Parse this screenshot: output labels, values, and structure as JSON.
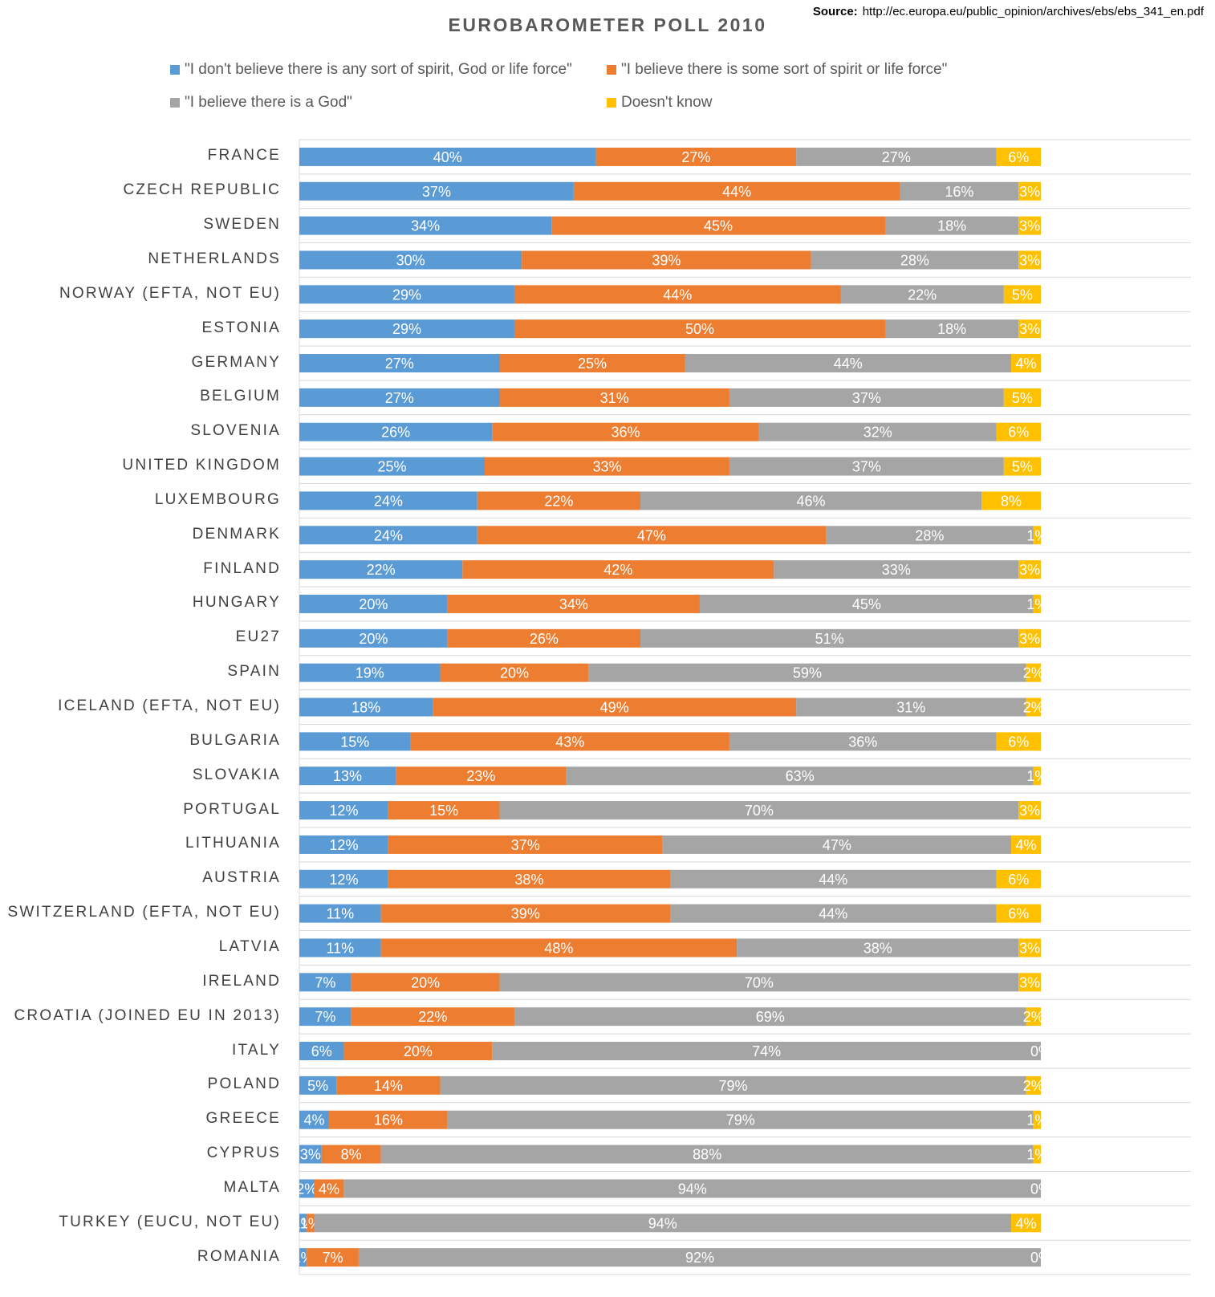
{
  "source": {
    "label": "Source:",
    "url": "http://ec.europa.eu/public_opinion/archives/ebs/ebs_341_en.pdf"
  },
  "chart_data": {
    "type": "bar",
    "orientation": "horizontal",
    "stacked": true,
    "title": "EUROBAROMETER POLL 2010",
    "xlabel": "",
    "ylabel": "",
    "xlim": [
      0,
      100
    ],
    "grid": true,
    "legend_position": "top",
    "categories": [
      "FRANCE",
      "CZECH REPUBLIC",
      "SWEDEN",
      "NETHERLANDS",
      "NORWAY (EFTA, NOT EU)",
      "ESTONIA",
      "GERMANY",
      "BELGIUM",
      "SLOVENIA",
      "UNITED KINGDOM",
      "LUXEMBOURG",
      "DENMARK",
      "FINLAND",
      "HUNGARY",
      "EU27",
      "SPAIN",
      "ICELAND (EFTA, NOT EU)",
      "BULGARIA",
      "SLOVAKIA",
      "PORTUGAL",
      "LITHUANIA",
      "AUSTRIA",
      "SWITZERLAND (EFTA, NOT EU)",
      "LATVIA",
      "IRELAND",
      "CROATIA (JOINED EU IN 2013)",
      "ITALY",
      "POLAND",
      "GREECE",
      "CYPRUS",
      "MALTA",
      "TURKEY (EUCU, NOT EU)",
      "ROMANIA"
    ],
    "series": [
      {
        "name": "\"I don't believe there is any sort of spirit, God or life force\"",
        "color": "#5B9BD5",
        "values": [
          40,
          37,
          34,
          30,
          29,
          29,
          27,
          27,
          26,
          25,
          24,
          24,
          22,
          20,
          20,
          19,
          18,
          15,
          13,
          12,
          12,
          12,
          11,
          11,
          7,
          7,
          6,
          5,
          4,
          3,
          2,
          1,
          1
        ]
      },
      {
        "name": "\"I believe there is some sort of spirit or life force\"",
        "color": "#ED7D31",
        "values": [
          27,
          44,
          45,
          39,
          44,
          50,
          25,
          31,
          36,
          33,
          22,
          47,
          42,
          34,
          26,
          20,
          49,
          43,
          23,
          15,
          37,
          38,
          39,
          48,
          20,
          22,
          20,
          14,
          16,
          8,
          4,
          1,
          7
        ]
      },
      {
        "name": "\"I believe there is a God\"",
        "color": "#A5A5A5",
        "values": [
          27,
          16,
          18,
          28,
          22,
          18,
          44,
          37,
          32,
          37,
          46,
          28,
          33,
          45,
          51,
          59,
          31,
          36,
          63,
          70,
          47,
          44,
          44,
          38,
          70,
          69,
          74,
          79,
          79,
          88,
          94,
          94,
          92
        ]
      },
      {
        "name": "Doesn't know",
        "color": "#FFC000",
        "values": [
          6,
          3,
          3,
          3,
          5,
          3,
          4,
          5,
          6,
          5,
          8,
          1,
          3,
          1,
          3,
          2,
          2,
          6,
          1,
          3,
          4,
          6,
          6,
          3,
          3,
          2,
          0,
          2,
          1,
          1,
          0,
          4,
          0
        ]
      }
    ]
  }
}
